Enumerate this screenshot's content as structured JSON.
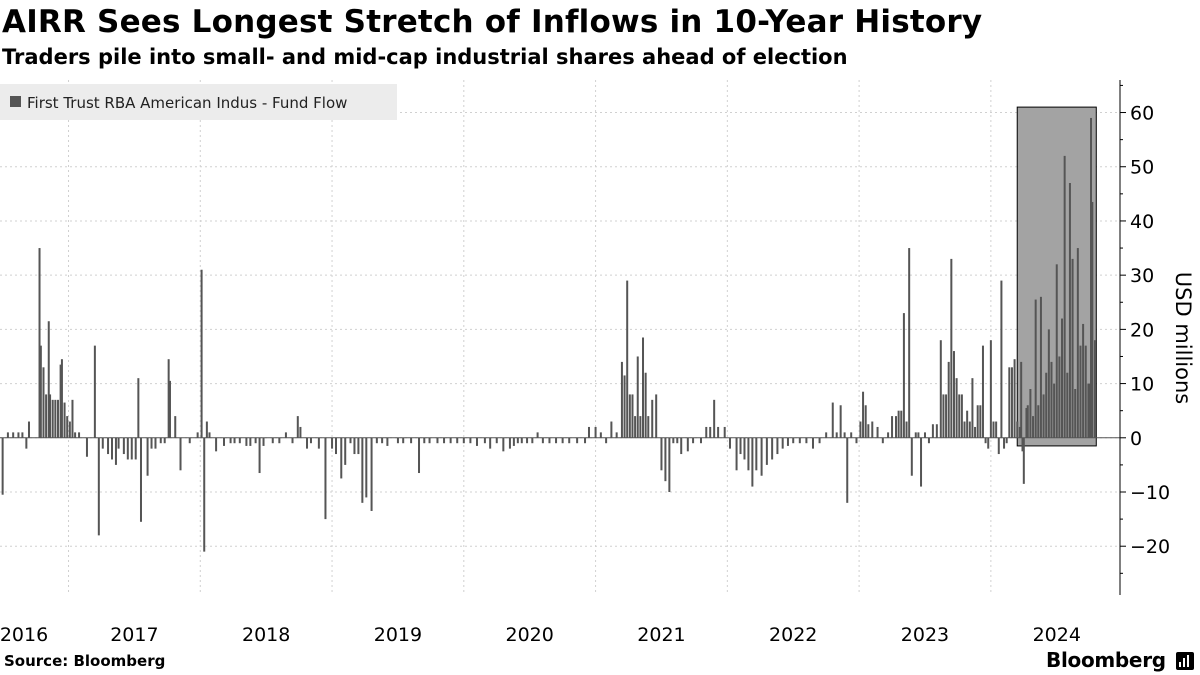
{
  "title": "AIRR Sees Longest Stretch of Inflows in 10-Year History",
  "subtitle": "Traders pile into small- and mid-cap industrial shares ahead of election",
  "footer": {
    "source": "Source: Bloomberg",
    "brand": "Bloomberg"
  },
  "colors": {
    "bar": "#555555",
    "highlight_fill": "#a3a3a3",
    "legend_bg": "#ececec",
    "grid": "#d0d0d0"
  },
  "chart_data": {
    "type": "bar",
    "legend": [
      "First Trust RBA American Indus - Fund Flow"
    ],
    "ylabel": "USD millions",
    "ylim": [
      -29,
      66
    ],
    "yticks": [
      60,
      50,
      40,
      30,
      20,
      10,
      0,
      -10,
      -20
    ],
    "xlim": [
      2015.98,
      2024.48
    ],
    "xticks": [
      {
        "label": "2016",
        "year": 2016
      },
      {
        "label": "2017",
        "year": 2017
      },
      {
        "label": "2018",
        "year": 2018
      },
      {
        "label": "2019",
        "year": 2019
      },
      {
        "label": "2020",
        "year": 2020
      },
      {
        "label": "2021",
        "year": 2021
      },
      {
        "label": "2022",
        "year": 2022
      },
      {
        "label": "2023",
        "year": 2023
      },
      {
        "label": "2024",
        "year": 2024
      }
    ],
    "highlight": {
      "x_from": 2023.7,
      "x_to": 2024.3,
      "y_from": -1.5,
      "y_to": 61
    },
    "series": [
      {
        "name": "First Trust RBA American Indus - Fund Flow",
        "points": [
          [
            2016.0,
            -10.5
          ],
          [
            2016.04,
            1
          ],
          [
            2016.08,
            1
          ],
          [
            2016.12,
            1
          ],
          [
            2016.15,
            1
          ],
          [
            2016.18,
            -2
          ],
          [
            2016.2,
            3
          ],
          [
            2016.28,
            35
          ],
          [
            2016.29,
            17
          ],
          [
            2016.31,
            13
          ],
          [
            2016.33,
            8
          ],
          [
            2016.35,
            21.5
          ],
          [
            2016.36,
            8
          ],
          [
            2016.38,
            7
          ],
          [
            2016.4,
            7
          ],
          [
            2016.42,
            7
          ],
          [
            2016.44,
            13.5
          ],
          [
            2016.45,
            14.5
          ],
          [
            2016.47,
            6.5
          ],
          [
            2016.49,
            4
          ],
          [
            2016.51,
            3
          ],
          [
            2016.53,
            7
          ],
          [
            2016.55,
            1
          ],
          [
            2016.58,
            1
          ],
          [
            2016.64,
            -3.5
          ],
          [
            2016.7,
            17
          ],
          [
            2016.73,
            -18
          ],
          [
            2016.76,
            -2
          ],
          [
            2016.8,
            -3
          ],
          [
            2016.83,
            -4
          ],
          [
            2016.86,
            -5
          ],
          [
            2016.88,
            -2
          ],
          [
            2016.92,
            -3
          ],
          [
            2016.95,
            -4
          ],
          [
            2016.98,
            -4
          ],
          [
            2017.01,
            -4
          ],
          [
            2017.03,
            11
          ],
          [
            2017.05,
            -15.5
          ],
          [
            2017.1,
            -7
          ],
          [
            2017.13,
            -2
          ],
          [
            2017.16,
            -2
          ],
          [
            2017.2,
            -1
          ],
          [
            2017.23,
            -1
          ],
          [
            2017.26,
            14.5
          ],
          [
            2017.27,
            10.5
          ],
          [
            2017.31,
            4
          ],
          [
            2017.35,
            -6
          ],
          [
            2017.42,
            -1
          ],
          [
            2017.48,
            1
          ],
          [
            2017.51,
            31
          ],
          [
            2017.53,
            -21
          ],
          [
            2017.55,
            3
          ],
          [
            2017.57,
            1
          ],
          [
            2017.62,
            -2.5
          ],
          [
            2017.68,
            -1.5
          ],
          [
            2017.73,
            -1
          ],
          [
            2017.76,
            -1
          ],
          [
            2017.8,
            -1
          ],
          [
            2017.85,
            -1.5
          ],
          [
            2017.88,
            -1.5
          ],
          [
            2017.92,
            -1
          ],
          [
            2017.95,
            -6.5
          ],
          [
            2017.98,
            -1.5
          ],
          [
            2018.05,
            -1
          ],
          [
            2018.1,
            -1
          ],
          [
            2018.15,
            1
          ],
          [
            2018.2,
            -1
          ],
          [
            2018.24,
            4
          ],
          [
            2018.26,
            2
          ],
          [
            2018.31,
            -2
          ],
          [
            2018.34,
            -1
          ],
          [
            2018.4,
            -2
          ],
          [
            2018.45,
            -15
          ],
          [
            2018.5,
            -2
          ],
          [
            2018.53,
            -3
          ],
          [
            2018.57,
            -7.5
          ],
          [
            2018.6,
            -5
          ],
          [
            2018.64,
            -1
          ],
          [
            2018.67,
            -3
          ],
          [
            2018.7,
            -3
          ],
          [
            2018.73,
            -12
          ],
          [
            2018.76,
            -11
          ],
          [
            2018.8,
            -13.5
          ],
          [
            2018.84,
            -1
          ],
          [
            2018.88,
            -1
          ],
          [
            2018.92,
            -1.5
          ],
          [
            2019.0,
            -1
          ],
          [
            2019.04,
            -1
          ],
          [
            2019.1,
            -1
          ],
          [
            2019.16,
            -6.5
          ],
          [
            2019.2,
            -1
          ],
          [
            2019.24,
            -1
          ],
          [
            2019.3,
            -1
          ],
          [
            2019.35,
            -1
          ],
          [
            2019.4,
            -1
          ],
          [
            2019.45,
            -1
          ],
          [
            2019.5,
            -1
          ],
          [
            2019.55,
            -1
          ],
          [
            2019.6,
            -1.5
          ],
          [
            2019.66,
            -1
          ],
          [
            2019.7,
            -2
          ],
          [
            2019.75,
            -1
          ],
          [
            2019.8,
            -2.5
          ],
          [
            2019.85,
            -2
          ],
          [
            2019.88,
            -1.5
          ],
          [
            2019.91,
            -1
          ],
          [
            2019.94,
            -1
          ],
          [
            2019.98,
            -1
          ],
          [
            2020.02,
            -1
          ],
          [
            2020.06,
            1
          ],
          [
            2020.1,
            -1
          ],
          [
            2020.15,
            -1
          ],
          [
            2020.2,
            -1
          ],
          [
            2020.25,
            -1
          ],
          [
            2020.3,
            -1
          ],
          [
            2020.36,
            -1
          ],
          [
            2020.42,
            -1
          ],
          [
            2020.45,
            2
          ],
          [
            2020.5,
            2
          ],
          [
            2020.54,
            1
          ],
          [
            2020.58,
            -1
          ],
          [
            2020.62,
            3
          ],
          [
            2020.66,
            1
          ],
          [
            2020.7,
            14
          ],
          [
            2020.72,
            11.5
          ],
          [
            2020.74,
            29
          ],
          [
            2020.76,
            8
          ],
          [
            2020.78,
            8
          ],
          [
            2020.8,
            4
          ],
          [
            2020.82,
            15
          ],
          [
            2020.84,
            4
          ],
          [
            2020.86,
            18.5
          ],
          [
            2020.88,
            12
          ],
          [
            2020.9,
            4
          ],
          [
            2020.93,
            7
          ],
          [
            2020.96,
            8
          ],
          [
            2021.0,
            -6
          ],
          [
            2021.03,
            -8
          ],
          [
            2021.06,
            -10
          ],
          [
            2021.09,
            -1
          ],
          [
            2021.12,
            -1
          ],
          [
            2021.15,
            -3
          ],
          [
            2021.2,
            -2.5
          ],
          [
            2021.24,
            -1
          ],
          [
            2021.3,
            -1
          ],
          [
            2021.34,
            2
          ],
          [
            2021.37,
            2
          ],
          [
            2021.4,
            7
          ],
          [
            2021.43,
            2
          ],
          [
            2021.48,
            2
          ],
          [
            2021.52,
            -2
          ],
          [
            2021.57,
            -6
          ],
          [
            2021.6,
            -3
          ],
          [
            2021.63,
            -4
          ],
          [
            2021.66,
            -6
          ],
          [
            2021.69,
            -9
          ],
          [
            2021.72,
            -6
          ],
          [
            2021.76,
            -7
          ],
          [
            2021.8,
            -5
          ],
          [
            2021.84,
            -4
          ],
          [
            2021.88,
            -3
          ],
          [
            2021.92,
            -2
          ],
          [
            2021.96,
            -1.5
          ],
          [
            2022.0,
            -1
          ],
          [
            2022.05,
            -1
          ],
          [
            2022.1,
            -1
          ],
          [
            2022.15,
            -2
          ],
          [
            2022.2,
            -1
          ],
          [
            2022.25,
            1
          ],
          [
            2022.3,
            6.5
          ],
          [
            2022.33,
            1
          ],
          [
            2022.36,
            6
          ],
          [
            2022.39,
            1
          ],
          [
            2022.41,
            -12
          ],
          [
            2022.44,
            1
          ],
          [
            2022.48,
            -1
          ],
          [
            2022.51,
            3
          ],
          [
            2022.53,
            8.5
          ],
          [
            2022.55,
            6
          ],
          [
            2022.57,
            2.5
          ],
          [
            2022.6,
            3
          ],
          [
            2022.64,
            2
          ],
          [
            2022.68,
            -1
          ],
          [
            2022.72,
            1
          ],
          [
            2022.75,
            4
          ],
          [
            2022.78,
            4
          ],
          [
            2022.8,
            5
          ],
          [
            2022.82,
            5
          ],
          [
            2022.84,
            23
          ],
          [
            2022.86,
            3
          ],
          [
            2022.88,
            35
          ],
          [
            2022.9,
            -7
          ],
          [
            2022.93,
            1
          ],
          [
            2022.95,
            1
          ],
          [
            2022.97,
            -9
          ],
          [
            2023.0,
            1
          ],
          [
            2023.03,
            -1
          ],
          [
            2023.06,
            2.5
          ],
          [
            2023.09,
            2.5
          ],
          [
            2023.12,
            18
          ],
          [
            2023.14,
            8
          ],
          [
            2023.16,
            8
          ],
          [
            2023.18,
            14
          ],
          [
            2023.2,
            33
          ],
          [
            2023.22,
            16
          ],
          [
            2023.24,
            11
          ],
          [
            2023.26,
            8
          ],
          [
            2023.28,
            8
          ],
          [
            2023.3,
            3
          ],
          [
            2023.32,
            5
          ],
          [
            2023.34,
            3
          ],
          [
            2023.36,
            11
          ],
          [
            2023.38,
            2
          ],
          [
            2023.4,
            6
          ],
          [
            2023.42,
            6
          ],
          [
            2023.44,
            17
          ],
          [
            2023.46,
            -1
          ],
          [
            2023.48,
            -2
          ],
          [
            2023.5,
            18
          ],
          [
            2023.52,
            3
          ],
          [
            2023.54,
            3
          ],
          [
            2023.56,
            -3
          ],
          [
            2023.58,
            29
          ],
          [
            2023.6,
            -2
          ],
          [
            2023.62,
            -1
          ],
          [
            2023.64,
            13
          ],
          [
            2023.66,
            13
          ],
          [
            2023.68,
            14.5
          ],
          [
            2023.7,
            3
          ],
          [
            2023.72,
            2
          ],
          [
            2023.73,
            14
          ],
          [
            2023.74,
            -2.5
          ],
          [
            2023.75,
            -8.5
          ],
          [
            2023.77,
            5.5
          ],
          [
            2023.78,
            6
          ],
          [
            2023.8,
            9
          ],
          [
            2023.82,
            4
          ],
          [
            2023.84,
            25.5
          ],
          [
            2023.86,
            6
          ],
          [
            2023.88,
            26
          ],
          [
            2023.9,
            8
          ],
          [
            2023.92,
            12
          ],
          [
            2023.94,
            20
          ],
          [
            2023.96,
            14
          ],
          [
            2023.98,
            10
          ],
          [
            2024.0,
            32
          ],
          [
            2024.02,
            15
          ],
          [
            2024.04,
            22
          ],
          [
            2024.06,
            52
          ],
          [
            2024.08,
            12
          ],
          [
            2024.1,
            47
          ],
          [
            2024.12,
            33
          ],
          [
            2024.14,
            9
          ],
          [
            2024.16,
            35
          ],
          [
            2024.18,
            17
          ],
          [
            2024.2,
            21
          ],
          [
            2024.22,
            17
          ],
          [
            2024.24,
            10
          ],
          [
            2024.25,
            10
          ],
          [
            2024.26,
            59
          ],
          [
            2024.27,
            43.5
          ],
          [
            2024.29,
            18
          ]
        ]
      }
    ]
  }
}
